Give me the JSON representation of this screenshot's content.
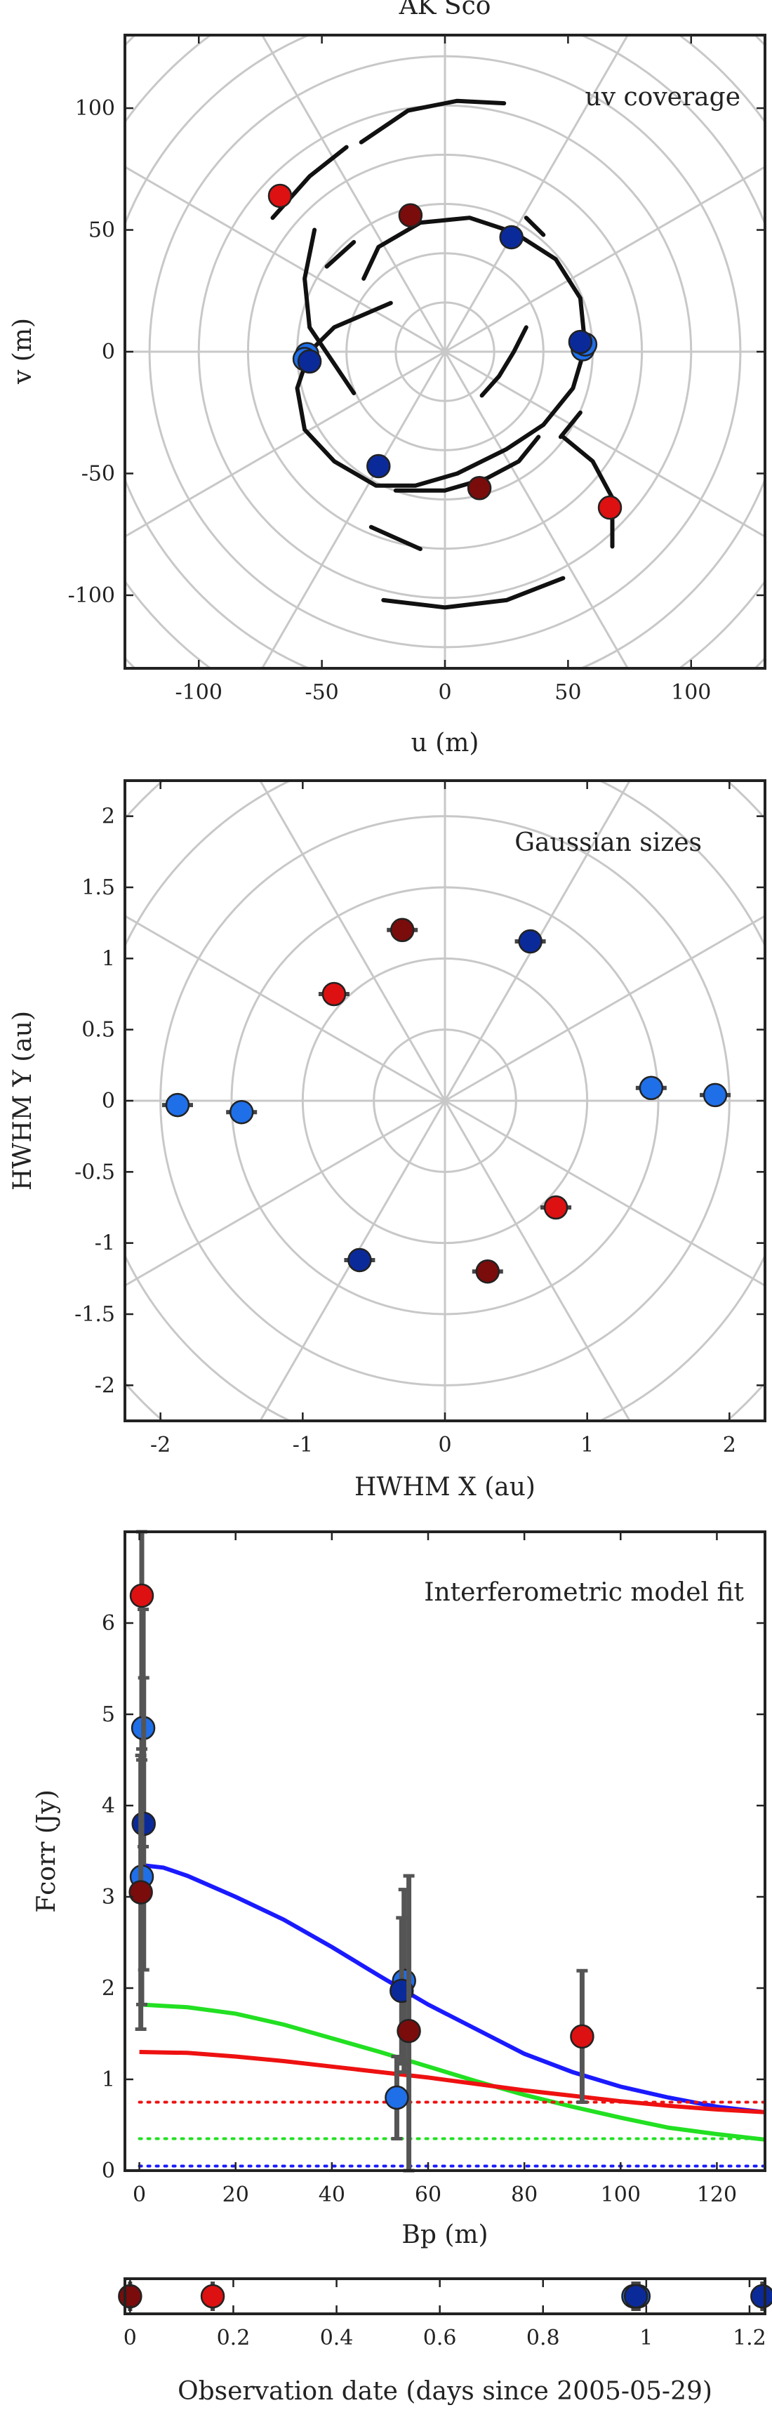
{
  "chart_data": [
    {
      "type": "scatter",
      "title": "AK Sco",
      "annotation": "uv coverage",
      "xlabel": "u (m)",
      "ylabel": "v (m)",
      "xlim": [
        -130,
        130
      ],
      "ylim": [
        -130,
        130
      ],
      "xticks": [
        -100,
        -50,
        0,
        50,
        100
      ],
      "yticks": [
        -100,
        -50,
        0,
        50,
        100
      ],
      "xtick_labels": [
        "-100",
        "-50",
        "0",
        "50",
        "100"
      ],
      "ytick_labels": [
        "-100",
        "-50",
        "0",
        "50",
        "100"
      ],
      "grid": "polar",
      "tracks": [
        [
          [
            -34,
            86
          ],
          [
            -15,
            99
          ],
          [
            5,
            103
          ],
          [
            24,
            102
          ]
        ],
        [
          [
            -53,
            50
          ],
          [
            -57,
            30
          ],
          [
            -55,
            10
          ],
          [
            -45,
            -5
          ],
          [
            -37,
            -17
          ]
        ],
        [
          [
            -70,
            55
          ],
          [
            -55,
            72
          ],
          [
            -40,
            84
          ]
        ],
        [
          [
            -33,
            30
          ],
          [
            -27,
            43
          ],
          [
            -10,
            53
          ],
          [
            10,
            55
          ],
          [
            28,
            49
          ],
          [
            45,
            38
          ],
          [
            55,
            22
          ],
          [
            57,
            2
          ],
          [
            52,
            -15
          ],
          [
            40,
            -30
          ],
          [
            25,
            -40
          ],
          [
            5,
            -50
          ],
          [
            -12,
            -55
          ],
          [
            -28,
            -55
          ],
          [
            -45,
            -45
          ],
          [
            -57,
            -32
          ],
          [
            -60,
            -15
          ],
          [
            -55,
            0
          ],
          [
            -45,
            10
          ],
          [
            -22,
            20
          ]
        ],
        [
          [
            33,
            10
          ],
          [
            28,
            0
          ],
          [
            22,
            -10
          ],
          [
            15,
            -18
          ]
        ],
        [
          [
            38,
            -35
          ],
          [
            30,
            -45
          ],
          [
            17,
            -52
          ],
          [
            0,
            -57
          ],
          [
            -20,
            -57
          ]
        ],
        [
          [
            -37,
            45
          ],
          [
            -48,
            35
          ]
        ],
        [
          [
            33,
            55
          ],
          [
            40,
            48
          ]
        ],
        [
          [
            47,
            -35
          ],
          [
            55,
            -25
          ]
        ],
        [
          [
            -30,
            -72
          ],
          [
            -10,
            -81
          ]
        ],
        [
          [
            48,
            -35
          ],
          [
            60,
            -45
          ],
          [
            68,
            -60
          ],
          [
            68,
            -80
          ]
        ],
        [
          [
            -25,
            -102
          ],
          [
            0,
            -105
          ],
          [
            25,
            -102
          ],
          [
            48,
            -93
          ]
        ]
      ],
      "series": [
        {
          "color": "#dd1111",
          "points": [
            [
              -67,
              64
            ],
            [
              67,
              -64
            ]
          ]
        },
        {
          "color": "#1f6fe8",
          "points": [
            [
              -56,
              -1
            ],
            [
              56,
              1
            ],
            [
              -57,
              -3
            ],
            [
              57,
              3
            ]
          ]
        },
        {
          "color": "#0b2a9a",
          "points": [
            [
              -27,
              -47
            ],
            [
              27,
              47
            ],
            [
              55,
              4
            ],
            [
              -55,
              -4
            ]
          ]
        },
        {
          "color": "#7a0c0c",
          "points": [
            [
              -14,
              56
            ],
            [
              14,
              -56
            ]
          ]
        }
      ]
    },
    {
      "type": "scatter",
      "annotation": "Gaussian sizes",
      "xlabel": "HWHM X (au)",
      "ylabel": "HWHM Y (au)",
      "xlim": [
        -2.25,
        2.25
      ],
      "ylim": [
        -2.25,
        2.25
      ],
      "xticks": [
        -2,
        -1,
        0,
        1,
        2
      ],
      "yticks": [
        -2,
        -1.5,
        -1,
        -0.5,
        0,
        0.5,
        1,
        1.5,
        2
      ],
      "xtick_labels": [
        "-2",
        "-1",
        "0",
        "1",
        "2"
      ],
      "ytick_labels": [
        "-2",
        "-1.5",
        "-1",
        "-0.5",
        "0",
        "0.5",
        "1",
        "1.5",
        "2"
      ],
      "grid": "polar",
      "series": [
        {
          "color": "#7a0c0c",
          "points": [
            [
              -0.3,
              1.2
            ],
            [
              0.3,
              -1.2
            ]
          ]
        },
        {
          "color": "#0b2a9a",
          "points": [
            [
              0.6,
              1.12
            ],
            [
              -0.6,
              -1.12
            ]
          ]
        },
        {
          "color": "#dd1111",
          "points": [
            [
              -0.78,
              0.75
            ],
            [
              0.78,
              -0.75
            ]
          ]
        },
        {
          "color": "#1f6fe8",
          "points": [
            [
              -1.88,
              -0.03
            ],
            [
              -1.43,
              -0.08
            ],
            [
              1.45,
              0.09
            ],
            [
              1.9,
              0.04
            ]
          ]
        }
      ]
    },
    {
      "type": "line",
      "annotation": "Interferometric model fit",
      "xlabel": "Bp (m)",
      "ylabel": "Fcorr (Jy)",
      "xlim": [
        -3,
        130
      ],
      "ylim": [
        0,
        7
      ],
      "xticks": [
        0,
        20,
        40,
        60,
        80,
        100,
        120
      ],
      "yticks": [
        0,
        1,
        2,
        3,
        4,
        5,
        6
      ],
      "xtick_labels": [
        "0",
        "20",
        "40",
        "60",
        "80",
        "100",
        "120"
      ],
      "ytick_labels": [
        "0",
        "1",
        "2",
        "3",
        "4",
        "5",
        "6"
      ],
      "series": [
        {
          "color": "#1a1aff",
          "style": "solid",
          "x": [
            0,
            5,
            10,
            20,
            30,
            40,
            50,
            60,
            70,
            80,
            90,
            100,
            110,
            120,
            130
          ],
          "y": [
            3.35,
            3.32,
            3.23,
            3.0,
            2.75,
            2.45,
            2.13,
            1.82,
            1.55,
            1.28,
            1.08,
            0.92,
            0.8,
            0.7,
            0.64
          ]
        },
        {
          "color": "#22e022",
          "style": "solid",
          "x": [
            0,
            10,
            20,
            30,
            40,
            50,
            60,
            70,
            80,
            90,
            100,
            110,
            120,
            130
          ],
          "y": [
            1.82,
            1.79,
            1.72,
            1.6,
            1.45,
            1.3,
            1.14,
            0.98,
            0.83,
            0.7,
            0.58,
            0.47,
            0.4,
            0.34
          ]
        },
        {
          "color": "#ee1111",
          "style": "solid",
          "x": [
            0,
            10,
            20,
            30,
            40,
            50,
            60,
            70,
            80,
            90,
            100,
            110,
            120,
            130
          ],
          "y": [
            1.3,
            1.29,
            1.25,
            1.2,
            1.14,
            1.08,
            1.02,
            0.95,
            0.88,
            0.82,
            0.76,
            0.71,
            0.67,
            0.64
          ]
        },
        {
          "color": "#ee1111",
          "style": "dotted",
          "x": [
            0,
            130
          ],
          "y": [
            0.75,
            0.75
          ]
        },
        {
          "color": "#22e022",
          "style": "dotted",
          "x": [
            0,
            130
          ],
          "y": [
            0.35,
            0.35
          ]
        },
        {
          "color": "#1a1aff",
          "style": "dotted",
          "x": [
            0,
            130
          ],
          "y": [
            0.05,
            0.05
          ]
        }
      ],
      "points": [
        {
          "color": "#dd1111",
          "x": 0.5,
          "y": 6.3,
          "err": 1.8
        },
        {
          "color": "#1f6fe8",
          "x": 0.8,
          "y": 4.85,
          "err": 1.3
        },
        {
          "color": "#0b2a9a",
          "x": 0.9,
          "y": 3.8,
          "err": 1.6
        },
        {
          "color": "#1f6fe8",
          "x": 0.5,
          "y": 3.22,
          "err": 1.4
        },
        {
          "color": "#7a0c0c",
          "x": 0.3,
          "y": 3.05,
          "err": 1.5
        },
        {
          "color": "#1f6fe8",
          "x": 55,
          "y": 2.08,
          "err": 1.0
        },
        {
          "color": "#0b2a9a",
          "x": 54.5,
          "y": 1.97,
          "err": 0.8
        },
        {
          "color": "#7a0c0c",
          "x": 56,
          "y": 1.53,
          "err": 1.7
        },
        {
          "color": "#1f6fe8",
          "x": 53.5,
          "y": 0.8,
          "err": 0.45
        },
        {
          "color": "#dd1111",
          "x": 92,
          "y": 1.47,
          "err": 0.72
        }
      ]
    },
    {
      "type": "scatter",
      "xlabel": "Observation date (days since 2005-05-29)",
      "xlim": [
        -0.01,
        1.23
      ],
      "xticks": [
        0,
        0.2,
        0.4,
        0.6,
        0.8,
        1,
        1.2
      ],
      "xtick_labels": [
        "0",
        "0.2",
        "0.4",
        "0.6",
        "0.8",
        "1",
        "1.2"
      ],
      "series": [
        {
          "color": "#7a0c0c",
          "x": [
            0.0
          ]
        },
        {
          "color": "#dd1111",
          "x": [
            0.16
          ]
        },
        {
          "color": "#1f6fe8",
          "x": [
            0.975,
            0.985
          ]
        },
        {
          "color": "#0b2a9a",
          "x": [
            0.98,
            1.225
          ]
        }
      ]
    }
  ]
}
